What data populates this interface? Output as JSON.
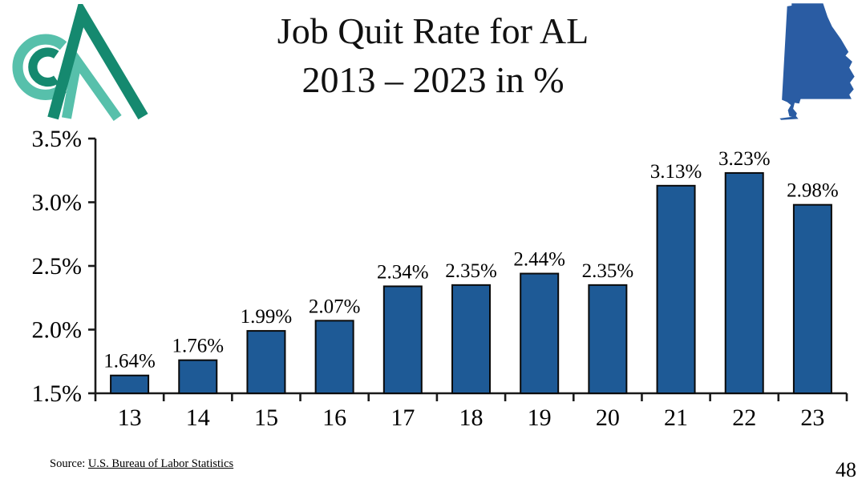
{
  "header": {
    "title_line1": "Job Quit Rate for AL",
    "title_line2": "2013 – 2023 in %",
    "logo_icon": "cca-mountains-logo",
    "state_icon": "alabama-state-silhouette"
  },
  "chart_data": {
    "type": "bar",
    "title": "Job Quit Rate for AL 2013 – 2023 in %",
    "xlabel": "",
    "ylabel": "",
    "categories": [
      "13",
      "14",
      "15",
      "16",
      "17",
      "18",
      "19",
      "20",
      "21",
      "22",
      "23"
    ],
    "values": [
      1.64,
      1.76,
      1.99,
      2.07,
      2.34,
      2.35,
      2.44,
      2.35,
      3.13,
      3.23,
      2.98
    ],
    "value_labels": [
      "1.64%",
      "1.76%",
      "1.99%",
      "2.07%",
      "2.34%",
      "2.35%",
      "2.44%",
      "2.35%",
      "3.13%",
      "3.23%",
      "2.98%"
    ],
    "y_ticks": [
      1.5,
      2.0,
      2.5,
      3.0,
      3.5
    ],
    "y_tick_labels": [
      "1.5%",
      "2.0%",
      "2.5%",
      "3.0%",
      "3.5%"
    ],
    "ylim": [
      1.5,
      3.5
    ],
    "grid": false,
    "legend": "none",
    "bar_color": "#1E5A96",
    "bar_border_color": "#0a0a0a",
    "axis_color": "#1a1a1a"
  },
  "footer": {
    "source_prefix": "Source: ",
    "source_link": "U.S. Bureau of Labor Statistics",
    "page_number": "48"
  },
  "colors": {
    "logo_teal": "#57C0AB",
    "logo_green": "#15896F",
    "state_blue": "#2A5CA3"
  }
}
